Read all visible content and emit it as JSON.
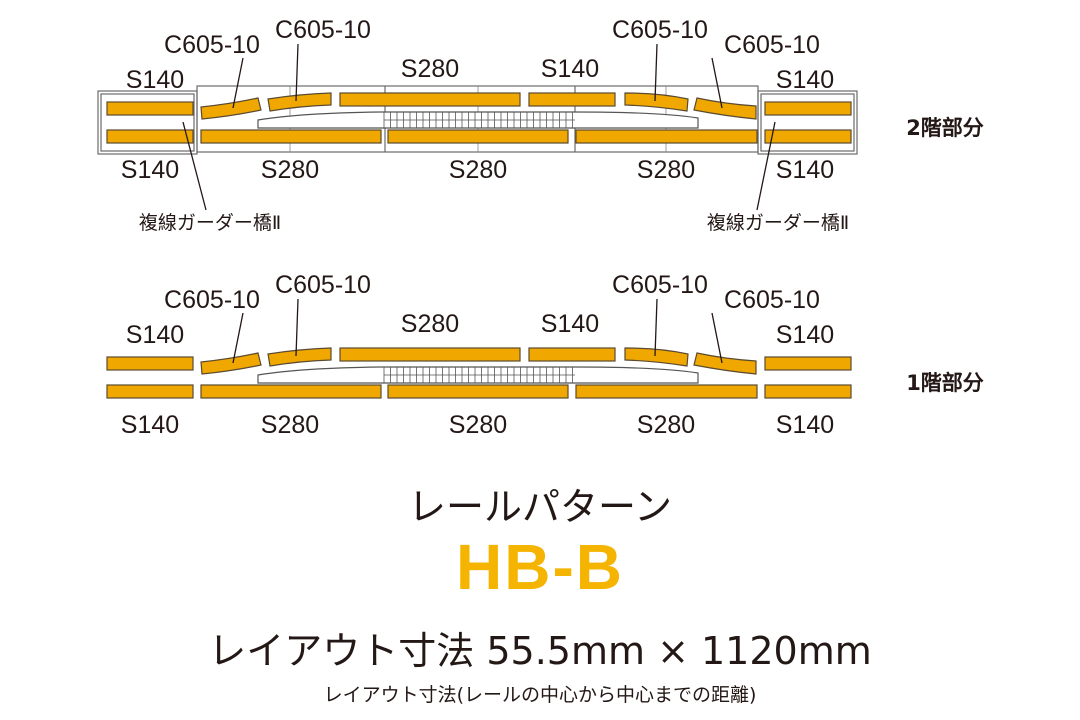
{
  "colors": {
    "track": "#f0a800",
    "title_accent": "#f5b400",
    "text": "#231815"
  },
  "levels": [
    {
      "floor_label": "2階部分",
      "top_labels": [
        "S140",
        "C605-10",
        "C605-10",
        "S280",
        "S140",
        "C605-10",
        "C605-10",
        "S140"
      ],
      "bottom_labels": [
        "S140",
        "S280",
        "S280",
        "S280",
        "S140"
      ],
      "bridge_labels": [
        "複線ガーダー橋Ⅱ",
        "複線ガーダー橋Ⅱ"
      ]
    },
    {
      "floor_label": "1階部分",
      "top_labels": [
        "S140",
        "C605-10",
        "C605-10",
        "S280",
        "S140",
        "C605-10",
        "C605-10",
        "S140"
      ],
      "bottom_labels": [
        "S140",
        "S280",
        "S280",
        "S280",
        "S140"
      ]
    }
  ],
  "title": "レールパターン",
  "code": "HB-B",
  "dimensions": "レイアウト寸法 55.5mm × 1120mm",
  "note": "レイアウト寸法(レールの中心から中心までの距離)"
}
